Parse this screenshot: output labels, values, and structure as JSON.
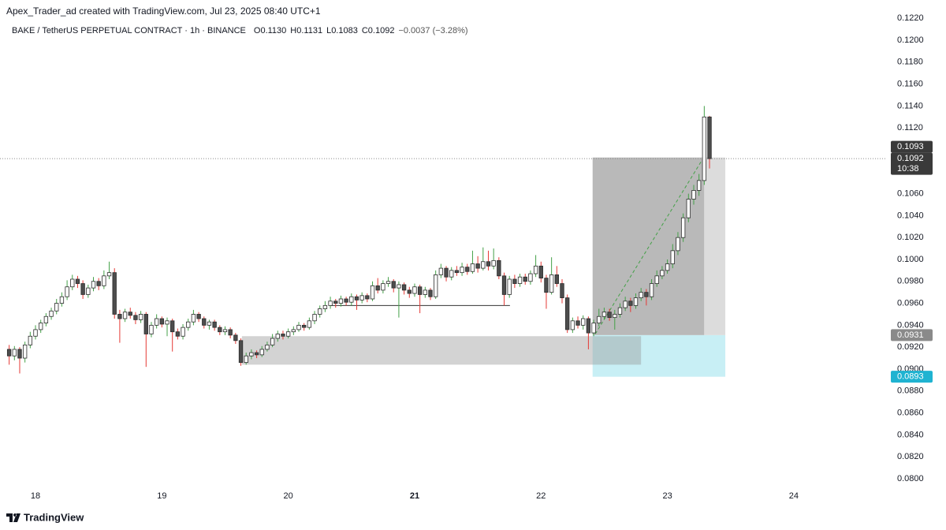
{
  "header": {
    "attribution": "Apex_Trader_ad created with TradingView.com, Jul 23, 2025 08:40 UTC+1"
  },
  "footer": {
    "brand": "TradingView"
  },
  "chart_data": {
    "type": "candlestick",
    "symbol": "BAKE / TetherUS PERPETUAL CONTRACT · 1h · BINANCE",
    "ohlc_legend": [
      {
        "key": "O",
        "value": "0.1130"
      },
      {
        "key": "H",
        "value": "0.1131"
      },
      {
        "key": "L",
        "value": "0.1083"
      },
      {
        "key": "C",
        "value": "0.1092"
      }
    ],
    "change": "−0.0037 (−3.28%)",
    "x": [
      -5,
      -4,
      -3,
      -2,
      -1,
      0,
      1,
      2,
      3,
      4,
      5,
      6,
      7,
      8,
      9,
      10,
      11,
      12,
      13,
      14,
      15,
      16,
      17,
      18,
      19,
      20,
      21,
      22,
      23,
      24,
      25,
      26,
      27,
      28,
      29,
      30,
      31,
      32,
      33,
      34,
      35,
      36,
      37,
      38,
      39,
      40,
      41,
      42,
      43,
      44,
      45,
      46,
      47,
      48,
      49,
      50,
      51,
      52,
      53,
      54,
      55,
      56,
      57,
      58,
      59,
      60,
      61,
      62,
      63,
      64,
      65,
      66,
      67,
      68,
      69,
      70,
      71,
      72,
      73,
      74,
      75,
      76,
      77,
      78,
      79,
      80,
      81,
      82,
      83,
      84,
      85,
      86,
      87,
      88,
      89,
      90,
      91,
      92,
      93,
      94,
      95,
      96,
      97,
      98,
      99,
      100,
      101,
      102,
      103,
      104,
      105,
      106,
      107,
      108,
      109,
      110,
      111,
      112,
      113,
      114,
      115,
      116,
      117,
      118,
      119,
      120,
      121,
      122,
      123,
      124,
      125,
      126,
      127,
      128
    ],
    "open": [
      0.0918,
      0.0912,
      0.0918,
      0.091,
      0.0922,
      0.093,
      0.0936,
      0.0942,
      0.0948,
      0.0953,
      0.096,
      0.0966,
      0.0975,
      0.0982,
      0.0978,
      0.0968,
      0.0974,
      0.098,
      0.0976,
      0.0985,
      0.0988,
      0.095,
      0.0946,
      0.0952,
      0.0949,
      0.0945,
      0.095,
      0.0932,
      0.094,
      0.0946,
      0.0941,
      0.0944,
      0.0934,
      0.093,
      0.0938,
      0.0943,
      0.095,
      0.0946,
      0.094,
      0.0943,
      0.0938,
      0.0934,
      0.0936,
      0.0931,
      0.0926,
      0.0906,
      0.0912,
      0.0915,
      0.0913,
      0.0918,
      0.0922,
      0.0928,
      0.0932,
      0.093,
      0.0934,
      0.0936,
      0.094,
      0.0938,
      0.0944,
      0.095,
      0.0955,
      0.0958,
      0.0962,
      0.096,
      0.0964,
      0.0961,
      0.0966,
      0.0963,
      0.0967,
      0.0964,
      0.0976,
      0.0972,
      0.0978,
      0.098,
      0.0974,
      0.0977,
      0.0972,
      0.0969,
      0.0975,
      0.0968,
      0.0972,
      0.0966,
      0.0986,
      0.0992,
      0.0984,
      0.099,
      0.0988,
      0.0993,
      0.0989,
      0.0996,
      0.0992,
      0.0998,
      0.0994,
      0.0999,
      0.0985,
      0.0968,
      0.0982,
      0.0978,
      0.0984,
      0.098,
      0.0987,
      0.0994,
      0.0983,
      0.097,
      0.0986,
      0.0978,
      0.0965,
      0.0936,
      0.0944,
      0.094,
      0.0946,
      0.0933,
      0.0942,
      0.0948,
      0.0952,
      0.0947,
      0.095,
      0.0956,
      0.0962,
      0.0958,
      0.0965,
      0.097,
      0.0966,
      0.0978,
      0.0985,
      0.099,
      0.0996,
      0.1008,
      0.102,
      0.1038,
      0.1055,
      0.1063,
      0.1072,
      0.113
    ],
    "high": [
      0.0922,
      0.0921,
      0.092,
      0.0925,
      0.0934,
      0.094,
      0.0945,
      0.0951,
      0.0956,
      0.0964,
      0.097,
      0.0981,
      0.0986,
      0.0985,
      0.0981,
      0.0977,
      0.0984,
      0.0983,
      0.099,
      0.0998,
      0.0992,
      0.0954,
      0.0955,
      0.0956,
      0.0952,
      0.0953,
      0.0952,
      0.0943,
      0.095,
      0.0948,
      0.0947,
      0.0946,
      0.0937,
      0.0941,
      0.0946,
      0.0954,
      0.0952,
      0.0948,
      0.0945,
      0.0945,
      0.094,
      0.0939,
      0.0938,
      0.0933,
      0.0928,
      0.0915,
      0.0918,
      0.0917,
      0.0921,
      0.0925,
      0.0932,
      0.0935,
      0.0935,
      0.0937,
      0.0939,
      0.0943,
      0.0942,
      0.0947,
      0.0953,
      0.0958,
      0.0962,
      0.0966,
      0.0964,
      0.0967,
      0.0966,
      0.0969,
      0.0968,
      0.097,
      0.0969,
      0.098,
      0.0983,
      0.0981,
      0.0984,
      0.0982,
      0.098,
      0.0979,
      0.0975,
      0.0978,
      0.0977,
      0.0975,
      0.0974,
      0.099,
      0.0996,
      0.0994,
      0.0993,
      0.0994,
      0.0997,
      0.0996,
      0.1008,
      0.1003,
      0.1011,
      0.1008,
      0.101,
      0.1002,
      0.0988,
      0.0985,
      0.0986,
      0.0987,
      0.0987,
      0.099,
      0.1004,
      0.0998,
      0.0986,
      0.1002,
      0.0994,
      0.0982,
      0.0968,
      0.0947,
      0.0948,
      0.0949,
      0.0948,
      0.0945,
      0.0955,
      0.0956,
      0.0955,
      0.0954,
      0.096,
      0.0966,
      0.0965,
      0.0969,
      0.0974,
      0.0973,
      0.0982,
      0.099,
      0.0994,
      0.1,
      0.1014,
      0.1025,
      0.1042,
      0.106,
      0.1068,
      0.1078,
      0.114,
      0.1131
    ],
    "low": [
      0.0904,
      0.0908,
      0.0896,
      0.0906,
      0.0919,
      0.0927,
      0.0933,
      0.0939,
      0.0945,
      0.095,
      0.0957,
      0.0963,
      0.0972,
      0.0974,
      0.0964,
      0.0965,
      0.0971,
      0.0972,
      0.0973,
      0.0982,
      0.0946,
      0.0924,
      0.0943,
      0.0946,
      0.0941,
      0.0942,
      0.0902,
      0.0929,
      0.0937,
      0.0938,
      0.093,
      0.0916,
      0.0927,
      0.0927,
      0.0935,
      0.094,
      0.0943,
      0.0937,
      0.0936,
      0.0935,
      0.0931,
      0.0931,
      0.0928,
      0.0923,
      0.0903,
      0.0904,
      0.0909,
      0.091,
      0.0911,
      0.0916,
      0.092,
      0.0925,
      0.0927,
      0.0928,
      0.0931,
      0.0934,
      0.0935,
      0.0936,
      0.0941,
      0.0947,
      0.0952,
      0.0955,
      0.0956,
      0.0957,
      0.0958,
      0.0958,
      0.0954,
      0.096,
      0.0961,
      0.0962,
      0.0969,
      0.0969,
      0.0975,
      0.097,
      0.0947,
      0.0968,
      0.0965,
      0.0966,
      0.0951,
      0.0965,
      0.0963,
      0.0964,
      0.0983,
      0.098,
      0.0981,
      0.0985,
      0.0985,
      0.0986,
      0.0987,
      0.0988,
      0.099,
      0.099,
      0.0991,
      0.0982,
      0.0958,
      0.0965,
      0.0974,
      0.0975,
      0.0977,
      0.0977,
      0.0984,
      0.0979,
      0.0955,
      0.0968,
      0.0975,
      0.096,
      0.0933,
      0.0933,
      0.0937,
      0.0936,
      0.0918,
      0.093,
      0.0939,
      0.0945,
      0.0944,
      0.0936,
      0.0947,
      0.0953,
      0.0952,
      0.0955,
      0.0962,
      0.0958,
      0.0963,
      0.0975,
      0.0982,
      0.0987,
      0.0992,
      0.1004,
      0.1016,
      0.1034,
      0.105,
      0.1058,
      0.1068,
      0.1083
    ],
    "close": [
      0.0912,
      0.0918,
      0.091,
      0.0922,
      0.093,
      0.0936,
      0.0942,
      0.0948,
      0.0953,
      0.096,
      0.0966,
      0.0975,
      0.0982,
      0.0978,
      0.0968,
      0.0974,
      0.098,
      0.0976,
      0.0985,
      0.0988,
      0.095,
      0.0946,
      0.0952,
      0.0949,
      0.0945,
      0.095,
      0.0932,
      0.094,
      0.0946,
      0.0941,
      0.0944,
      0.0934,
      0.093,
      0.0938,
      0.0943,
      0.095,
      0.0946,
      0.094,
      0.0943,
      0.0938,
      0.0934,
      0.0936,
      0.0931,
      0.0926,
      0.0906,
      0.0912,
      0.0915,
      0.0913,
      0.0918,
      0.0922,
      0.0928,
      0.0932,
      0.093,
      0.0934,
      0.0936,
      0.094,
      0.0938,
      0.0944,
      0.095,
      0.0955,
      0.0958,
      0.0962,
      0.096,
      0.0964,
      0.0961,
      0.0966,
      0.0963,
      0.0967,
      0.0964,
      0.0976,
      0.0972,
      0.0978,
      0.098,
      0.0974,
      0.0977,
      0.0972,
      0.0969,
      0.0975,
      0.0968,
      0.0972,
      0.0966,
      0.0986,
      0.0992,
      0.0984,
      0.099,
      0.0988,
      0.0993,
      0.0989,
      0.0996,
      0.0992,
      0.0998,
      0.0994,
      0.0999,
      0.0985,
      0.0968,
      0.0982,
      0.0978,
      0.0984,
      0.098,
      0.0987,
      0.0994,
      0.0983,
      0.097,
      0.0986,
      0.0978,
      0.0965,
      0.0936,
      0.0944,
      0.094,
      0.0946,
      0.0933,
      0.0942,
      0.0948,
      0.0952,
      0.0947,
      0.095,
      0.0956,
      0.0962,
      0.0958,
      0.0965,
      0.097,
      0.0966,
      0.0978,
      0.0985,
      0.099,
      0.0996,
      0.1008,
      0.102,
      0.1038,
      0.1055,
      0.1063,
      0.1072,
      0.113,
      0.1092
    ],
    "up_color": "#ffffff",
    "down_color": "#4d4d4d",
    "outline_color": "#2b2b2b",
    "up_wick_color": "#43a047",
    "down_wick_color": "#e53935",
    "xlim": [
      -6.74,
      161.68
    ],
    "xticks": [
      {
        "value": 0,
        "label": "18"
      },
      {
        "value": 24,
        "label": "19"
      },
      {
        "value": 48,
        "label": "20"
      },
      {
        "value": 72,
        "label": "21",
        "bold": true
      },
      {
        "value": 96,
        "label": "22"
      },
      {
        "value": 120,
        "label": "23"
      },
      {
        "value": 144,
        "label": "24"
      }
    ],
    "ylim": [
      0.07942,
      0.12367
    ],
    "yticks": [
      {
        "value": 0.08,
        "label": "0.0800"
      },
      {
        "value": 0.082,
        "label": "0.0820"
      },
      {
        "value": 0.084,
        "label": "0.0840"
      },
      {
        "value": 0.086,
        "label": "0.0860"
      },
      {
        "value": 0.088,
        "label": "0.0880"
      },
      {
        "value": 0.09,
        "label": "0.0900"
      },
      {
        "value": 0.092,
        "label": "0.0920"
      },
      {
        "value": 0.094,
        "label": "0.0940"
      },
      {
        "value": 0.096,
        "label": "0.0960"
      },
      {
        "value": 0.098,
        "label": "0.0980"
      },
      {
        "value": 0.1,
        "label": "0.1000"
      },
      {
        "value": 0.102,
        "label": "0.1020"
      },
      {
        "value": 0.104,
        "label": "0.1040"
      },
      {
        "value": 0.106,
        "label": "0.1060"
      },
      {
        "value": 0.108,
        "label": "0.1080"
      },
      {
        "value": 0.11,
        "label": "0.1100"
      },
      {
        "value": 0.112,
        "label": "0.1120"
      },
      {
        "value": 0.114,
        "label": "0.1140"
      },
      {
        "value": 0.116,
        "label": "0.1160"
      },
      {
        "value": 0.118,
        "label": "0.1180"
      },
      {
        "value": 0.12,
        "label": "0.1200"
      },
      {
        "value": 0.122,
        "label": "0.1220"
      }
    ],
    "grid": false,
    "last_price_line": {
      "value": 0.1092,
      "color": "#8a8a8a"
    },
    "long_position": {
      "x": [
        105.8,
        131.0
      ],
      "progress_x": 127.0,
      "entry": 0.0931,
      "target": 0.1093,
      "stop": 0.0893,
      "target_color": "#b9b9b9",
      "target_rest_color": "#dcdcdc",
      "stop_color": "#c8eff5"
    },
    "zones": [
      {
        "x": [
          39.2,
          115.0
        ],
        "y": [
          0.0904,
          0.093
        ],
        "color": "rgba(150,150,150,0.42)"
      }
    ],
    "horizontal_lines": [
      {
        "x": [
          56.1,
          90.1
        ],
        "value": 0.0958,
        "color": "#333333"
      }
    ],
    "trend_lines": [
      {
        "x": [
          106.3,
          126.5
        ],
        "y": [
          0.0932,
          0.109
        ],
        "color": "#43a047"
      }
    ],
    "price_tags": [
      {
        "value": 0.1092,
        "label": "0.1092",
        "sub": "10:38",
        "color": "#3a3a3a"
      },
      {
        "value": 0.1093,
        "label": "0.1093",
        "color": "#3a3a3a"
      },
      {
        "value": 0.0931,
        "label": "0.0931",
        "color": "#8a8a8a"
      },
      {
        "value": 0.0893,
        "label": "0.0893",
        "color": "#1fb3d1"
      }
    ]
  }
}
